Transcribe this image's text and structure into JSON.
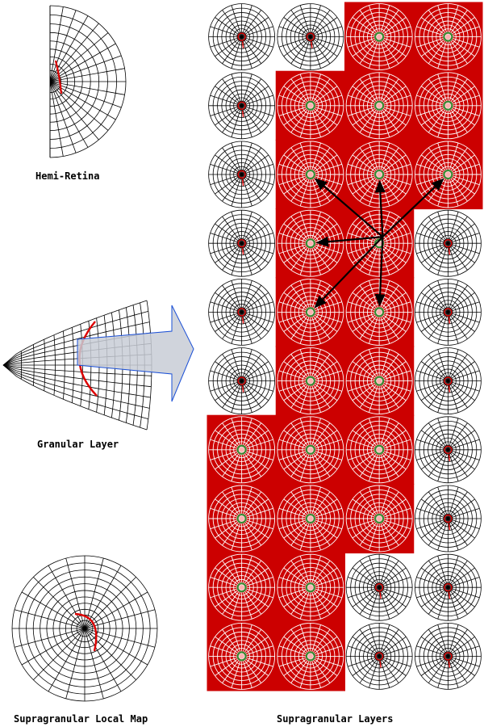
{
  "labels": {
    "hemi_retina": "Hemi-Retina",
    "granular_layer": "Granular Layer",
    "local_map": "Supragranular Local Map",
    "supra_layers": "Supragranular Layers"
  },
  "colors": {
    "highlight_fill": "#cc0000",
    "grid_dark": "#000000",
    "grid_light": "#ffffff",
    "arc": "#dd0000",
    "arrow_outline": "#1a4fd6",
    "arrow_fill": "#c8ccd6",
    "connection": "#000000",
    "center_green": "#2e8b2e",
    "center_pink": "#ffb0b0"
  },
  "supragranular_grid": {
    "columns": 4,
    "rows": 10,
    "highlighted_cells": [
      [
        0,
        2
      ],
      [
        0,
        3
      ],
      [
        1,
        1
      ],
      [
        1,
        2
      ],
      [
        1,
        3
      ],
      [
        2,
        1
      ],
      [
        2,
        2
      ],
      [
        2,
        3
      ],
      [
        3,
        1
      ],
      [
        3,
        2
      ],
      [
        4,
        1
      ],
      [
        4,
        2
      ],
      [
        5,
        1
      ],
      [
        5,
        2
      ],
      [
        6,
        0
      ],
      [
        6,
        1
      ],
      [
        6,
        2
      ],
      [
        7,
        0
      ],
      [
        7,
        1
      ],
      [
        7,
        2
      ],
      [
        8,
        0
      ],
      [
        8,
        1
      ],
      [
        9,
        0
      ],
      [
        9,
        1
      ]
    ],
    "connection_source_cell": [
      3,
      2
    ],
    "connection_target_cells": [
      [
        2,
        1
      ],
      [
        2,
        2
      ],
      [
        2,
        3
      ],
      [
        3,
        1
      ],
      [
        4,
        1
      ],
      [
        4,
        2
      ]
    ]
  }
}
